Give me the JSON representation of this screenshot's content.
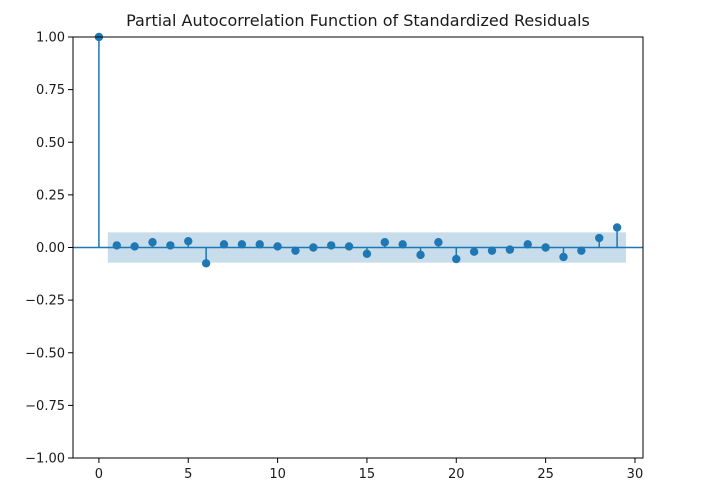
{
  "chart_data": {
    "type": "stem",
    "title": "Partial Autocorrelation Function of Standardized Residuals",
    "xlabel": "",
    "ylabel": "",
    "xlim": [
      -1.45,
      30.45
    ],
    "ylim": [
      -1.0,
      1.0
    ],
    "x_ticks": [
      0,
      5,
      10,
      15,
      20,
      25,
      30
    ],
    "y_ticks": [
      1.0,
      0.75,
      0.5,
      0.25,
      0.0,
      -0.25,
      -0.5,
      -0.75,
      -1.0
    ],
    "x_tick_labels": [
      "0",
      "5",
      "10",
      "15",
      "20",
      "25",
      "30"
    ],
    "y_tick_labels": [
      "1.00",
      "0.75",
      "0.50",
      "0.25",
      "0.00",
      "−0.25",
      "−0.50",
      "−0.75",
      "−1.00"
    ],
    "grid": false,
    "colors": {
      "stem": "#1f77b4",
      "confidence_band": "#1f77b4",
      "axes": "#000000"
    },
    "confidence_band": {
      "x_range": [
        0.5,
        29.5
      ],
      "lower": -0.072,
      "upper": 0.072
    },
    "series": [
      {
        "lags": [
          0,
          1,
          2,
          3,
          4,
          5,
          6,
          7,
          8,
          9,
          10,
          11,
          12,
          13,
          14,
          15,
          16,
          17,
          18,
          19,
          20,
          21,
          22,
          23,
          24,
          25,
          26,
          27,
          28,
          29
        ],
        "values": [
          1.0,
          0.01,
          0.005,
          0.025,
          0.01,
          0.03,
          -0.075,
          0.015,
          0.015,
          0.015,
          0.005,
          -0.015,
          0.0,
          0.01,
          0.005,
          -0.03,
          0.025,
          0.015,
          -0.035,
          0.025,
          -0.055,
          -0.02,
          -0.015,
          -0.01,
          0.015,
          0.0,
          -0.045,
          -0.015,
          0.045,
          0.095
        ]
      }
    ]
  }
}
